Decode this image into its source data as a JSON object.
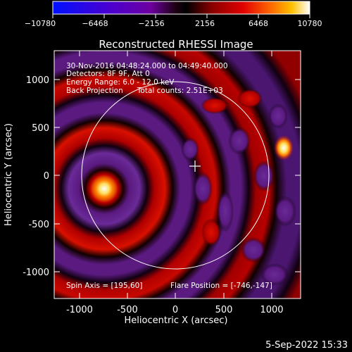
{
  "colorbar": {
    "ticks": [
      "−10780",
      "−6468",
      "−2156",
      "2156",
      "6468",
      "10780"
    ],
    "colormap": [
      "#0010ff",
      "#4a00d0",
      "#6d00a0",
      "#3a0030",
      "#000000",
      "#8a0000",
      "#e00000",
      "#ff6a00",
      "#ffc000",
      "#ffffff"
    ]
  },
  "image": {
    "title": "Reconstructed RHESSI Image",
    "info_lines": [
      "30-Nov-2016 04:48:24.000 to 04:49:40.000",
      "Detectors: 8F 9F, Att 0",
      "Energy Range: 6.0 - 12.0 keV",
      "Back Projection      Total counts: 2.51E+03"
    ],
    "spin_axis": "Spin Axis = [195,60]",
    "flare_position": "Flare Position = [-746,-147]",
    "x_ticks": [
      "-1000",
      "-500",
      "0",
      "500",
      "1000"
    ],
    "y_ticks": [
      "1000",
      "500",
      "0",
      "-500",
      "-1000"
    ],
    "xlabel": "Heliocentric X (arcsec)",
    "ylabel": "Heliocentric Y (arcsec)"
  },
  "timestamp": "5-Sep-2022 15:33"
}
